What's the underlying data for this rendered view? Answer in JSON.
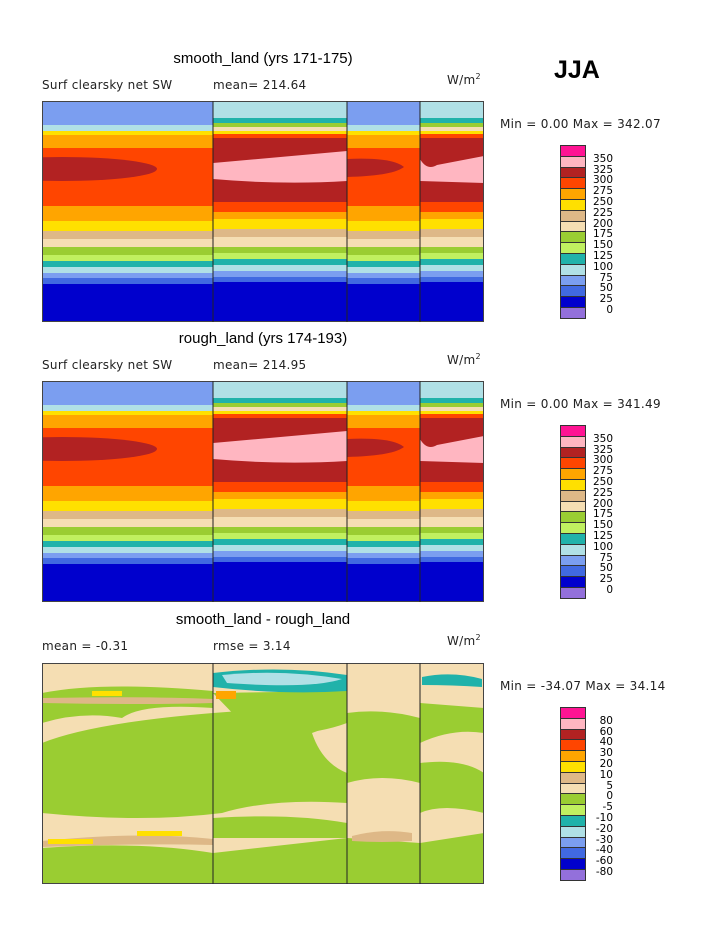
{
  "season": "JJA",
  "levels_colors": [
    "#9370db",
    "#0000cd",
    "#4169e1",
    "#7b9ef0",
    "#b0e0e6",
    "#20b2aa",
    "#c0f060",
    "#9acd32",
    "#f5deb3",
    "#deb887",
    "#ffe000",
    "#ffa500",
    "#ff4500",
    "#b22222",
    "#ffb6c1",
    "#ff1493"
  ],
  "chart_data": [
    {
      "type": "heatmap",
      "title": "smooth_land (yrs 171-175)",
      "left_label": "Surf clearsky net SW",
      "center_label": "mean= 214.64",
      "units": "W/m",
      "units_sup": "2",
      "min_max": "Min =   0.00 Max = 342.07",
      "min": 0.0,
      "max": 342.07,
      "mean": 214.64,
      "levels": [
        "0",
        "25",
        "50",
        "75",
        "100",
        "125",
        "150",
        "175",
        "200",
        "225",
        "250",
        "275",
        "300",
        "325",
        "350"
      ]
    },
    {
      "type": "heatmap",
      "title": "rough_land (yrs 174-193)",
      "left_label": "Surf clearsky net SW",
      "center_label": "mean= 214.95",
      "units": "W/m",
      "units_sup": "2",
      "min_max": "Min =   0.00 Max = 341.49",
      "min": 0.0,
      "max": 341.49,
      "mean": 214.95,
      "levels": [
        "0",
        "25",
        "50",
        "75",
        "100",
        "125",
        "150",
        "175",
        "200",
        "225",
        "250",
        "275",
        "300",
        "325",
        "350"
      ]
    },
    {
      "type": "heatmap",
      "title": "smooth_land - rough_land",
      "left_label": "mean =   -0.31",
      "center_label": "rmse =    3.14",
      "units": "W/m",
      "units_sup": "2",
      "min_max": "Min = -34.07 Max =  34.14",
      "min": -34.07,
      "max": 34.14,
      "mean": -0.31,
      "rmse": 3.14,
      "levels": [
        "-80",
        "-60",
        "-40",
        "-30",
        "-20",
        "-10",
        "-5",
        "0",
        "5",
        "10",
        "20",
        "30",
        "40",
        "60",
        "80"
      ]
    }
  ]
}
